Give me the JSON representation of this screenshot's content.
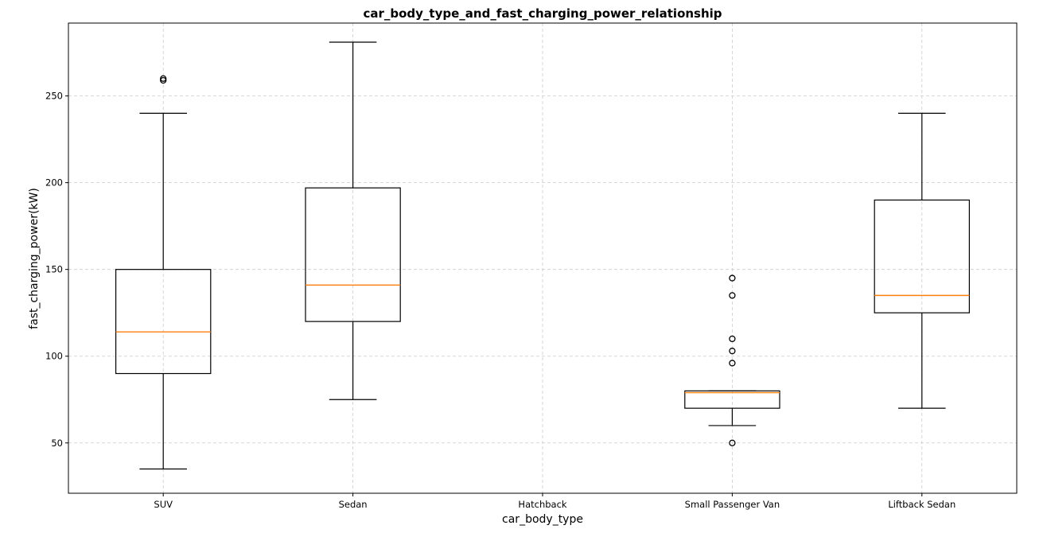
{
  "chart_data": {
    "type": "box",
    "title": "car_body_type_and_fast_charging_power_relationship",
    "xlabel": "car_body_type",
    "ylabel": "fast_charging_power(kW)",
    "categories": [
      "SUV",
      "Sedan",
      "Hatchback",
      "Small Passenger Van",
      "Liftback Sedan"
    ],
    "ylim": [
      21,
      292
    ],
    "yticks": [
      50,
      100,
      150,
      200,
      250
    ],
    "grid": true,
    "boxes": [
      {
        "category": "SUV",
        "whisker_low": 35,
        "q1": 90,
        "median": 114,
        "q3": 150,
        "whisker_high": 240,
        "outliers": [
          259,
          260
        ]
      },
      {
        "category": "Sedan",
        "whisker_low": 75,
        "q1": 120,
        "median": 141,
        "q3": 197,
        "whisker_high": 281,
        "outliers": []
      },
      {
        "category": "Hatchback",
        "empty": true
      },
      {
        "category": "Small Passenger Van",
        "whisker_low": 60,
        "q1": 70,
        "median": 79,
        "q3": 80,
        "whisker_high": 80,
        "outliers": [
          50,
          96,
          103,
          110,
          135,
          145
        ]
      },
      {
        "category": "Liftback Sedan",
        "whisker_low": 70,
        "q1": 125,
        "median": 135,
        "q3": 190,
        "whisker_high": 240,
        "outliers": []
      }
    ],
    "colors": {
      "box": "#000000",
      "median": "#ff7f0e",
      "grid": "#cccccc"
    }
  }
}
